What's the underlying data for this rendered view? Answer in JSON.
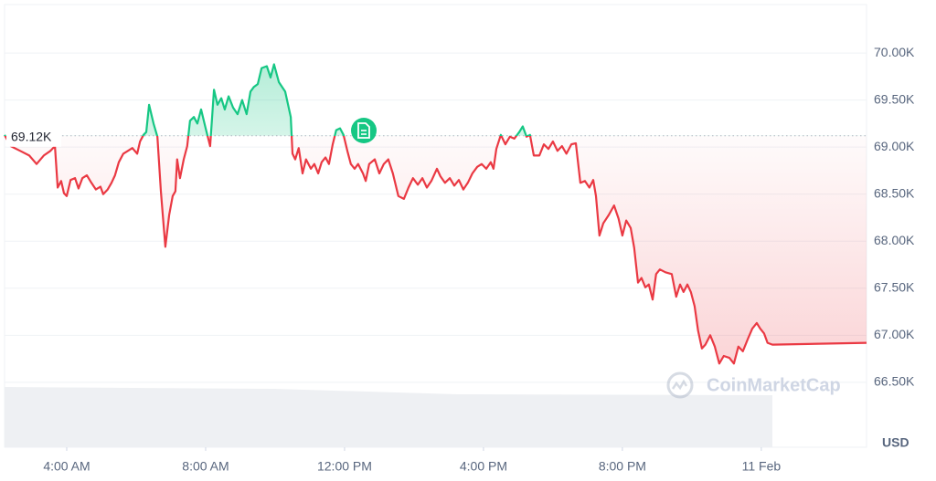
{
  "chart_data": {
    "type": "line",
    "axis_unit": "USD",
    "watermark": "CoinMarketCap",
    "up_color": "#16c784",
    "down_color": "#ea3943",
    "grid": true,
    "reference_line": {
      "value": 69120,
      "label": "69.12K"
    },
    "xlim": [
      2.21,
      27.03
    ],
    "xticks": [
      {
        "value": 4,
        "label": "4:00 AM"
      },
      {
        "value": 8,
        "label": "8:00 AM"
      },
      {
        "value": 12,
        "label": "12:00 PM"
      },
      {
        "value": 16,
        "label": "4:00 PM"
      },
      {
        "value": 20,
        "label": "8:00 PM"
      },
      {
        "value": 24,
        "label": "11 Feb"
      }
    ],
    "ylim": [
      65810,
      70515
    ],
    "yticks": [
      {
        "value": 66500,
        "label": "66.50K"
      },
      {
        "value": 67000,
        "label": "67.00K"
      },
      {
        "value": 67500,
        "label": "67.50K"
      },
      {
        "value": 68000,
        "label": "68.00K"
      },
      {
        "value": 68500,
        "label": "68.50K"
      },
      {
        "value": 69000,
        "label": "69.00K"
      },
      {
        "value": 69500,
        "label": "69.50K"
      },
      {
        "value": 70000,
        "label": "70.00K"
      }
    ],
    "x": [
      2.21,
      2.39,
      2.66,
      2.92,
      3.13,
      3.34,
      3.53,
      3.66,
      3.74,
      3.84,
      3.92,
      4.0,
      4.11,
      4.24,
      4.34,
      4.45,
      4.58,
      4.71,
      4.84,
      4.97,
      5.05,
      5.18,
      5.29,
      5.39,
      5.5,
      5.63,
      5.76,
      5.89,
      6.03,
      6.11,
      6.21,
      6.29,
      6.37,
      6.5,
      6.61,
      6.71,
      6.84,
      6.95,
      7.05,
      7.13,
      7.18,
      7.26,
      7.37,
      7.47,
      7.55,
      7.66,
      7.76,
      7.87,
      8.0,
      8.13,
      8.24,
      8.34,
      8.45,
      8.55,
      8.66,
      8.79,
      8.92,
      9.05,
      9.18,
      9.29,
      9.39,
      9.5,
      9.61,
      9.76,
      9.87,
      9.97,
      10.11,
      10.29,
      10.45,
      10.5,
      10.58,
      10.68,
      10.79,
      10.89,
      11.03,
      11.13,
      11.24,
      11.34,
      11.45,
      11.55,
      11.66,
      11.76,
      11.87,
      11.97,
      12.08,
      12.18,
      12.29,
      12.39,
      12.53,
      12.61,
      12.71,
      12.87,
      13.0,
      13.13,
      13.26,
      13.39,
      13.55,
      13.71,
      13.84,
      13.97,
      14.11,
      14.24,
      14.37,
      14.5,
      14.66,
      14.76,
      14.89,
      15.03,
      15.16,
      15.29,
      15.42,
      15.55,
      15.68,
      15.82,
      15.95,
      16.08,
      16.21,
      16.29,
      16.37,
      16.5,
      16.63,
      16.76,
      16.89,
      17.03,
      17.13,
      17.24,
      17.34,
      17.45,
      17.61,
      17.74,
      17.87,
      18.0,
      18.13,
      18.26,
      18.39,
      18.53,
      18.66,
      18.79,
      18.92,
      19.05,
      19.16,
      19.24,
      19.34,
      19.45,
      19.61,
      19.76,
      19.89,
      20.0,
      20.11,
      20.24,
      20.34,
      20.45,
      20.55,
      20.66,
      20.76,
      20.87,
      20.97,
      21.08,
      21.24,
      21.42,
      21.55,
      21.66,
      21.76,
      21.87,
      21.97,
      22.08,
      22.18,
      22.29,
      22.39,
      22.53,
      22.66,
      22.79,
      22.92,
      23.08,
      23.21,
      23.34,
      23.47,
      23.61,
      23.74,
      23.87,
      23.97,
      24.08,
      24.18,
      24.32,
      27.03
    ],
    "values": [
      69130,
      69010,
      68960,
      68910,
      68820,
      68910,
      68960,
      69010,
      68570,
      68640,
      68510,
      68480,
      68650,
      68670,
      68560,
      68670,
      68700,
      68620,
      68550,
      68580,
      68500,
      68550,
      68620,
      68700,
      68840,
      68930,
      68960,
      68990,
      68930,
      69060,
      69130,
      69160,
      69450,
      69250,
      69110,
      68530,
      67940,
      68280,
      68480,
      68530,
      68870,
      68670,
      68870,
      69010,
      69280,
      69320,
      69250,
      69400,
      69200,
      69010,
      69610,
      69450,
      69520,
      69400,
      69540,
      69420,
      69350,
      69500,
      69350,
      69590,
      69640,
      69670,
      69840,
      69860,
      69740,
      69880,
      69690,
      69590,
      69320,
      68930,
      68870,
      68990,
      68720,
      68870,
      68770,
      68820,
      68720,
      68840,
      68890,
      68820,
      69030,
      69180,
      69200,
      69130,
      68960,
      68820,
      68770,
      68820,
      68720,
      68640,
      68820,
      68870,
      68720,
      68820,
      68870,
      68720,
      68480,
      68450,
      68570,
      68670,
      68600,
      68670,
      68570,
      68640,
      68770,
      68690,
      68620,
      68670,
      68590,
      68650,
      68550,
      68620,
      68720,
      68790,
      68820,
      68770,
      68840,
      68770,
      68980,
      69130,
      69030,
      69110,
      69090,
      69160,
      69220,
      69110,
      69130,
      68910,
      68910,
      69030,
      68980,
      69060,
      68960,
      69010,
      68930,
      69030,
      69040,
      68620,
      68640,
      68570,
      68650,
      68480,
      68060,
      68190,
      68280,
      68380,
      68240,
      68060,
      68220,
      68140,
      67930,
      67560,
      67610,
      67510,
      67540,
      67380,
      67650,
      67700,
      67670,
      67650,
      67410,
      67540,
      67460,
      67540,
      67460,
      67310,
      67050,
      66860,
      66900,
      67000,
      66880,
      66700,
      66780,
      66760,
      66700,
      66880,
      66830,
      66960,
      67070,
      67130,
      67070,
      67020,
      66920,
      66900,
      66920
    ]
  }
}
